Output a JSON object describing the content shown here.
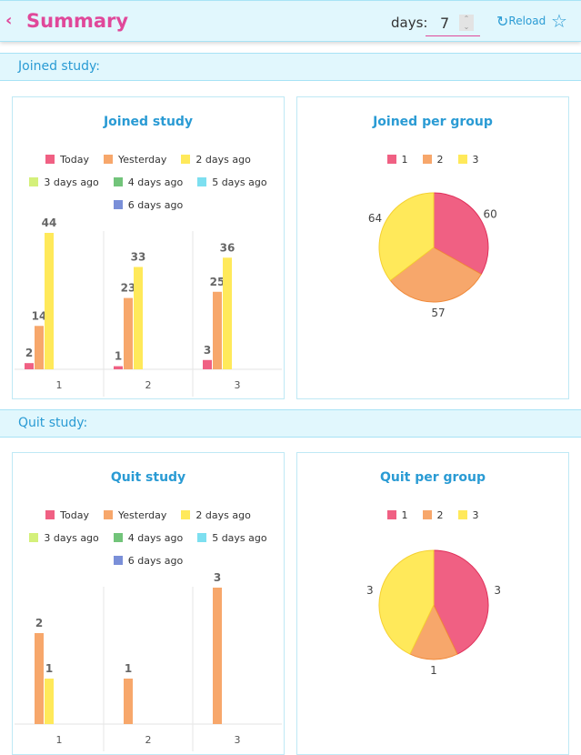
{
  "header": {
    "back_icon": "chevron-left-icon",
    "title": "Summary",
    "days_label": "days:",
    "days_value": "7",
    "reload_label": "Reload",
    "reload_icon": "refresh-icon",
    "star_icon": "star-icon"
  },
  "colors": {
    "series": [
      "#f06083",
      "#f7a76b",
      "#ffe95a",
      "#d4f07a",
      "#72c47a",
      "#7ddff0",
      "#7a8fd8"
    ],
    "groups": [
      "#f06083",
      "#f7a76b",
      "#ffe95a"
    ]
  },
  "sections": [
    {
      "label": "Joined study:"
    },
    {
      "label": "Quit study:"
    }
  ],
  "chart_data": [
    {
      "type": "bar",
      "title": "Joined study",
      "legend": [
        "Today",
        "Yesterday",
        "2 days ago",
        "3 days ago",
        "4 days ago",
        "5 days ago",
        "6 days ago"
      ],
      "categories": [
        "1",
        "2",
        "3"
      ],
      "series": [
        {
          "name": "Today",
          "values": [
            2,
            1,
            3
          ]
        },
        {
          "name": "Yesterday",
          "values": [
            14,
            23,
            25
          ]
        },
        {
          "name": "2 days ago",
          "values": [
            44,
            33,
            36
          ]
        },
        {
          "name": "3 days ago",
          "values": [
            0,
            0,
            0
          ]
        },
        {
          "name": "4 days ago",
          "values": [
            0,
            0,
            0
          ]
        },
        {
          "name": "5 days ago",
          "values": [
            0,
            0,
            0
          ]
        },
        {
          "name": "6 days ago",
          "values": [
            0,
            0,
            0
          ]
        }
      ],
      "ymax": 44
    },
    {
      "type": "pie",
      "title": "Joined per group",
      "legend": [
        "1",
        "2",
        "3"
      ],
      "values": [
        60,
        57,
        64
      ]
    },
    {
      "type": "bar",
      "title": "Quit study",
      "legend": [
        "Today",
        "Yesterday",
        "2 days ago",
        "3 days ago",
        "4 days ago",
        "5 days ago",
        "6 days ago"
      ],
      "categories": [
        "1",
        "2",
        "3"
      ],
      "series": [
        {
          "name": "Today",
          "values": [
            0,
            0,
            0
          ]
        },
        {
          "name": "Yesterday",
          "values": [
            2,
            1,
            3
          ]
        },
        {
          "name": "2 days ago",
          "values": [
            1,
            0,
            0
          ]
        },
        {
          "name": "3 days ago",
          "values": [
            0,
            0,
            0
          ]
        },
        {
          "name": "4 days ago",
          "values": [
            0,
            0,
            0
          ]
        },
        {
          "name": "5 days ago",
          "values": [
            0,
            0,
            0
          ]
        },
        {
          "name": "6 days ago",
          "values": [
            0,
            0,
            0
          ]
        }
      ],
      "ymax": 3
    },
    {
      "type": "pie",
      "title": "Quit per group",
      "legend": [
        "1",
        "2",
        "3"
      ],
      "values": [
        3,
        1,
        3
      ]
    }
  ]
}
